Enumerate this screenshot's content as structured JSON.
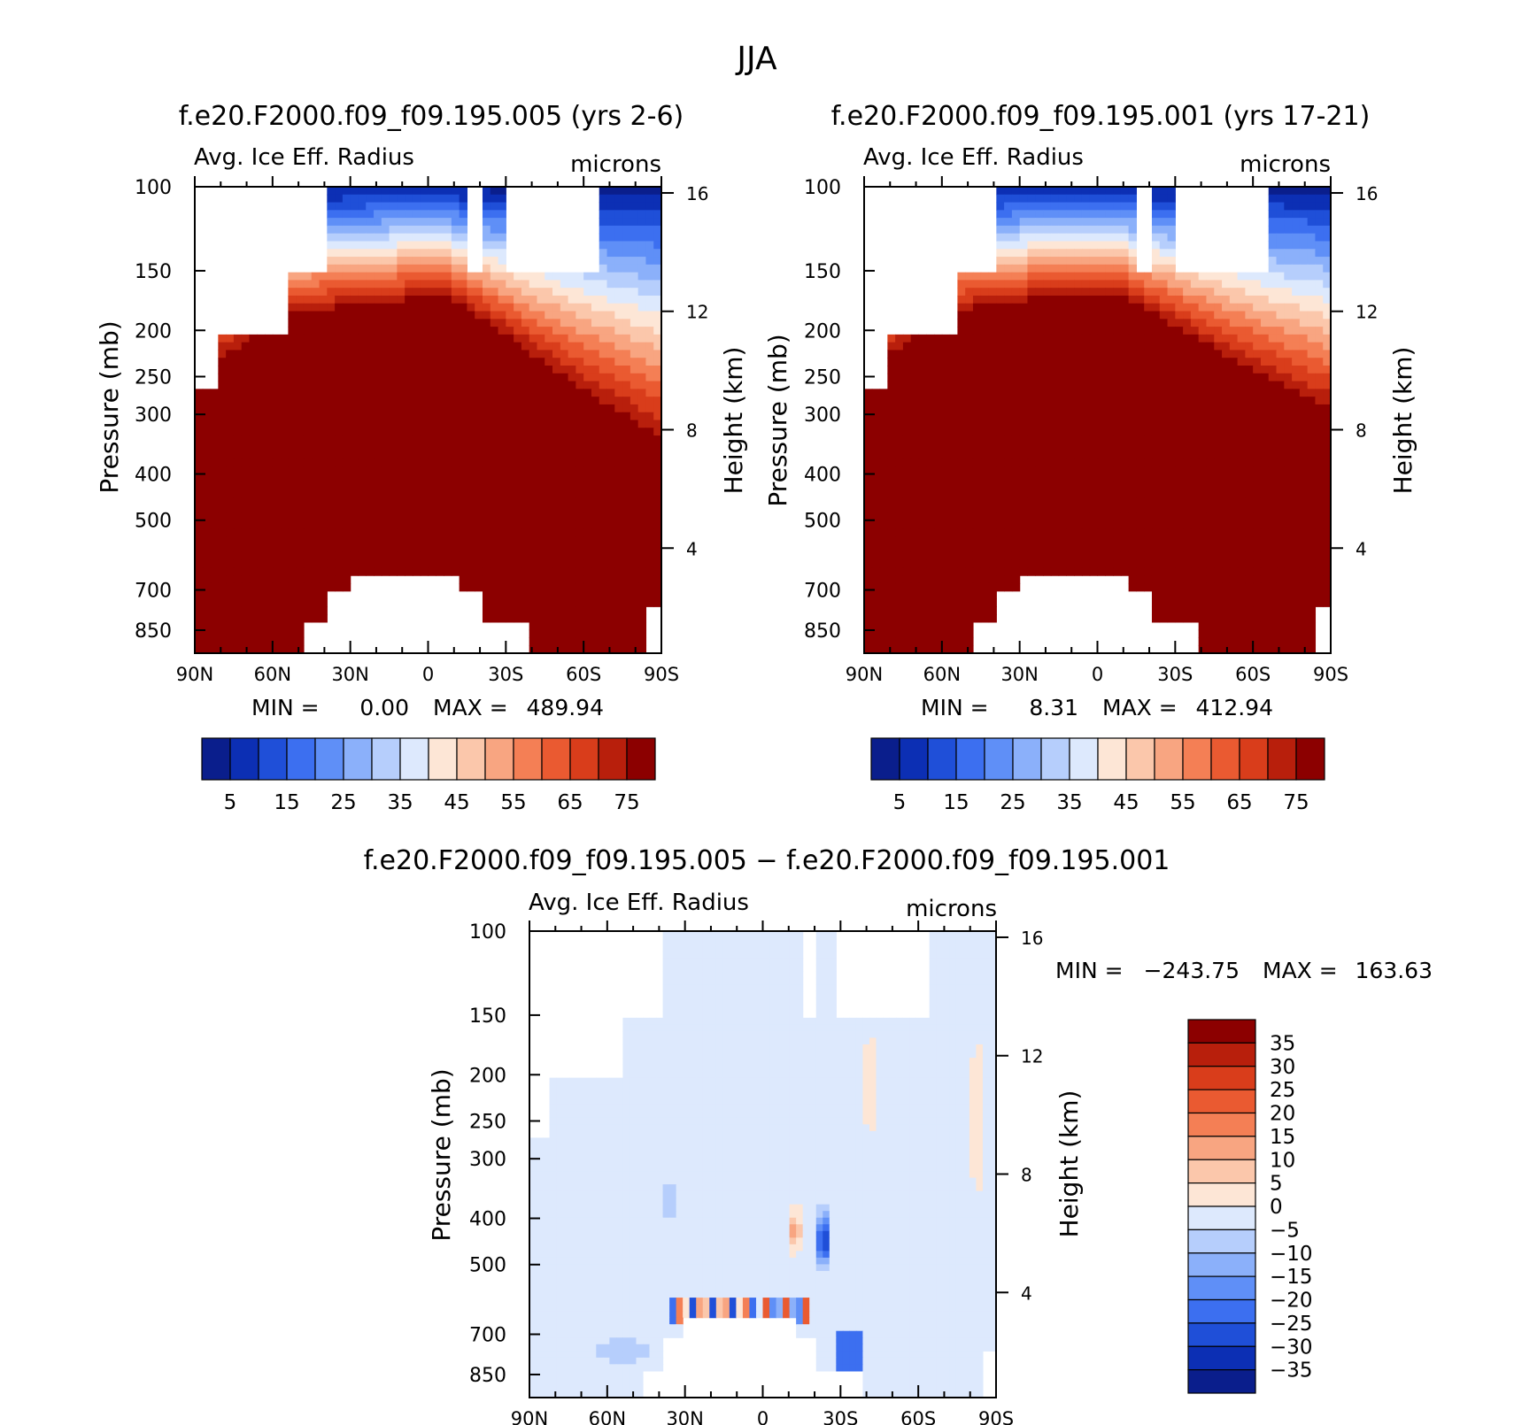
{
  "chart_data": {
    "type": "heatmap",
    "title": "JJA",
    "panels": [
      {
        "title": "f.e20.F2000.f09_f09.195.005 (yrs 2-6)",
        "variable": "Avg. Ice Eff. Radius",
        "units": "microns",
        "ylabel_left": "Pressure (mb)",
        "ylabel_right": "Height (km)",
        "yticks_left": [
          "100",
          "150",
          "200",
          "250",
          "300",
          "400",
          "500",
          "700",
          "850"
        ],
        "yticks_right": [
          "16",
          "12",
          "8",
          "4"
        ],
        "xticks": [
          "90N",
          "60N",
          "30N",
          "0",
          "30S",
          "60S",
          "90S"
        ],
        "min_label": "MIN =",
        "min_value": "0.00",
        "max_label": "MAX =",
        "max_value": "489.94",
        "colorbar_labels": [
          "5",
          "15",
          "25",
          "35",
          "45",
          "55",
          "65",
          "75"
        ],
        "colorbar_colors": [
          "#0a1e8c",
          "#0c2fb4",
          "#1f4fd8",
          "#3c6ff0",
          "#5f8ff7",
          "#8bb0fa",
          "#b6cefc",
          "#dde9fd",
          "#fde6d6",
          "#fbc7ab",
          "#f8a581",
          "#f47f55",
          "#ea5a31",
          "#d93d1b",
          "#b81f0c",
          "#8c0000"
        ],
        "field": {
          "top_deep_max": 0.55,
          "equator_max": 0.92,
          "pole_n_max": 0.55,
          "pole_s_max": 0.42,
          "red_top_equator": 0.3,
          "red_top_south": 0.56
        }
      },
      {
        "title": "f.e20.F2000.f09_f09.195.001 (yrs 17-21)",
        "variable": "Avg. Ice Eff. Radius",
        "units": "microns",
        "ylabel_left": "Pressure (mb)",
        "ylabel_right": "Height (km)",
        "yticks_left": [
          "100",
          "150",
          "200",
          "250",
          "300",
          "400",
          "500",
          "700",
          "850"
        ],
        "yticks_right": [
          "16",
          "12",
          "8",
          "4"
        ],
        "xticks": [
          "90N",
          "60N",
          "30N",
          "0",
          "30S",
          "60S",
          "90S"
        ],
        "min_label": "MIN =",
        "min_value": "8.31",
        "max_label": "MAX =",
        "max_value": "412.94",
        "colorbar_labels": [
          "5",
          "15",
          "25",
          "35",
          "45",
          "55",
          "65",
          "75"
        ],
        "colorbar_colors": [
          "#0a1e8c",
          "#0c2fb4",
          "#1f4fd8",
          "#3c6ff0",
          "#5f8ff7",
          "#8bb0fa",
          "#b6cefc",
          "#dde9fd",
          "#fde6d6",
          "#fbc7ab",
          "#f8a581",
          "#f47f55",
          "#ea5a31",
          "#d93d1b",
          "#b81f0c",
          "#8c0000"
        ],
        "field": {
          "top_deep_max": 0.5,
          "equator_max": 0.9,
          "pole_n_max": 0.55,
          "pole_s_max": 0.45,
          "red_top_equator": 0.29,
          "red_top_south": 0.5
        }
      },
      {
        "title": "f.e20.F2000.f09_f09.195.005 − f.e20.F2000.f09_f09.195.001",
        "variable": "Avg. Ice Eff. Radius",
        "units": "microns",
        "ylabel_left": "Pressure (mb)",
        "ylabel_right": "Height (km)",
        "yticks_left": [
          "100",
          "150",
          "200",
          "250",
          "300",
          "400",
          "500",
          "700",
          "850"
        ],
        "yticks_right": [
          "16",
          "12",
          "8",
          "4"
        ],
        "xticks": [
          "90N",
          "60N",
          "30N",
          "0",
          "30S",
          "60S",
          "90S"
        ],
        "min_label": "MIN =",
        "min_value": "−243.75",
        "max_label": "MAX =",
        "max_value": "163.63",
        "colorbar_labels": [
          "35",
          "30",
          "25",
          "20",
          "15",
          "10",
          "5",
          "0",
          "−5",
          "−10",
          "−15",
          "−20",
          "−25",
          "−30",
          "−35"
        ],
        "colorbar_colors": [
          "#8c0000",
          "#b81f0c",
          "#d93d1b",
          "#ea5a31",
          "#f47f55",
          "#f8a581",
          "#fbc7ab",
          "#fde6d6",
          "#dde9fd",
          "#b6cefc",
          "#8bb0fa",
          "#5f8ff7",
          "#3c6ff0",
          "#1f4fd8",
          "#0c2fb4",
          "#0a1e8c"
        ]
      }
    ]
  }
}
